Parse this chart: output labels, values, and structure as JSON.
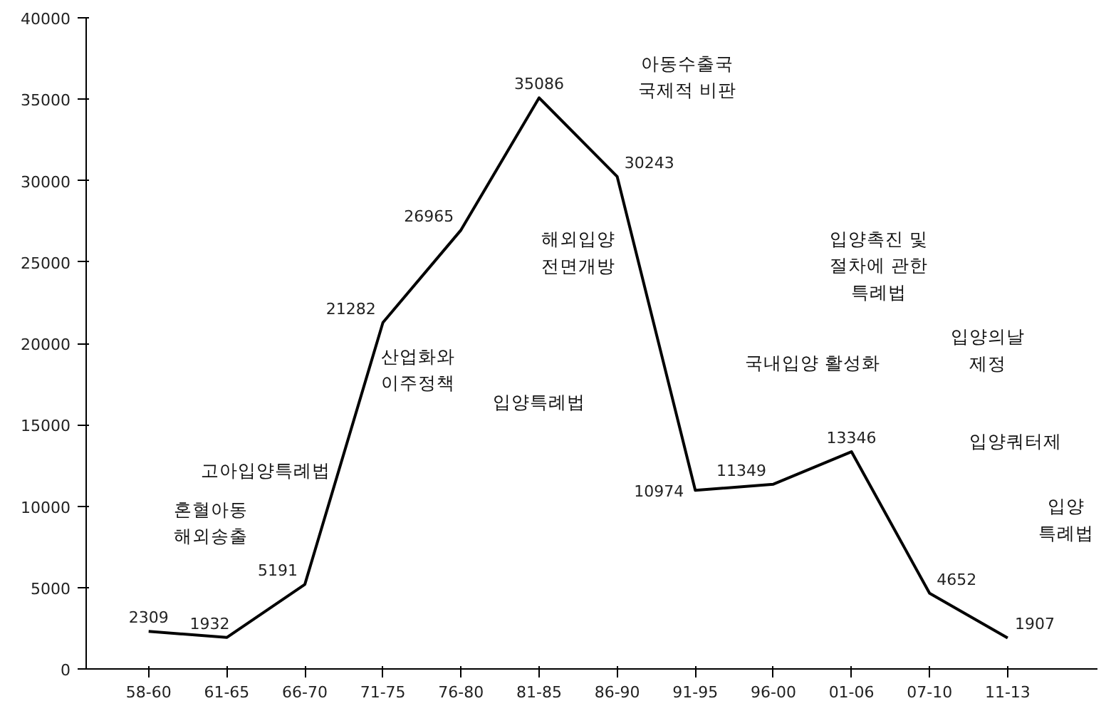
{
  "chart_data": {
    "type": "line",
    "categories": [
      "58-60",
      "61-65",
      "66-70",
      "71-75",
      "76-80",
      "81-85",
      "86-90",
      "91-95",
      "96-00",
      "01-06",
      "07-10",
      "11-13"
    ],
    "series": [
      {
        "color": "#000000",
        "values": [
          2309,
          1932,
          5191,
          21282,
          26965,
          35086,
          30243,
          10974,
          11349,
          13346,
          4652,
          1907
        ]
      }
    ],
    "ylim": [
      0,
      40000
    ],
    "yticks": [
      0,
      5000,
      10000,
      15000,
      20000,
      25000,
      30000,
      35000,
      40000
    ],
    "data_labels": true,
    "grid": false,
    "marker": "none",
    "line_style": "solid",
    "annotations": [
      "혼혈아동\n해외송출",
      "고아입양특례법",
      "산업화와\n이주정책",
      "입양특례법",
      "해외입양\n전면개방",
      "아동수출국\n국제적 비판",
      "국내입양 활성화",
      "입양촉진 및\n절차에 관한\n특례법",
      "입양의날\n제정",
      "입양쿼터제",
      "입양\n특례법"
    ]
  }
}
